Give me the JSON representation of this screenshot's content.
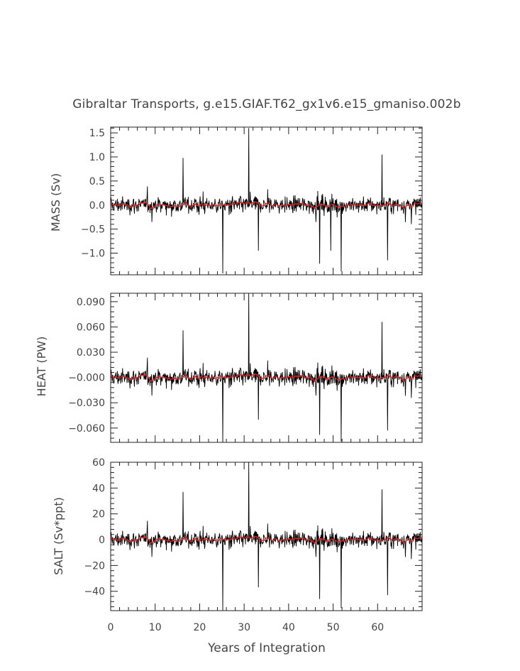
{
  "chart_data": {
    "type": "line",
    "title": "Gibraltar Transports, g.e15.GIAF.T62_gx1v6.e15_gmaniso.002b",
    "xlabel": "Years of Integration",
    "xlim": [
      0,
      70
    ],
    "x_ticks": [
      0,
      10,
      20,
      30,
      40,
      50,
      60
    ],
    "x_tick_labels": [
      "0",
      "10",
      "20",
      "30",
      "40",
      "50",
      "60"
    ],
    "colors": {
      "raw": "#000000",
      "smoothed": "#dd2222"
    },
    "panels": [
      {
        "id": "mass",
        "ylabel": "MASS (Sv)",
        "ylim": [
          -1.45,
          1.62
        ],
        "y_ticks": [
          1.5,
          1.0,
          0.5,
          0.0,
          -0.5,
          -1.0
        ],
        "y_tick_labels": [
          "1.5",
          "1.0",
          "0.5",
          "0.0",
          "−0.5",
          "−1.0"
        ],
        "scale": 0.095,
        "peaks": [
          {
            "x": 25.2,
            "y": -1.42
          },
          {
            "x": 31.0,
            "y": 1.6
          },
          {
            "x": 16.3,
            "y": 0.98
          },
          {
            "x": 61.0,
            "y": 1.05
          },
          {
            "x": 47.0,
            "y": -1.22
          },
          {
            "x": 51.8,
            "y": -1.38
          },
          {
            "x": 62.2,
            "y": -1.15
          },
          {
            "x": 33.2,
            "y": -0.95
          },
          {
            "x": 49.5,
            "y": -0.95
          }
        ]
      },
      {
        "id": "heat",
        "ylabel": "HEAT (PW)",
        "ylim": [
          -0.077,
          0.1
        ],
        "y_ticks": [
          0.09,
          0.06,
          0.03,
          0.0,
          -0.03,
          -0.06
        ],
        "y_tick_labels": [
          "0.090",
          "0.060",
          "0.030",
          "−0.000",
          "−0.030",
          "−0.060"
        ],
        "scale": 0.0058,
        "peaks": [
          {
            "x": 25.2,
            "y": -0.077
          },
          {
            "x": 31.0,
            "y": 0.1
          },
          {
            "x": 16.3,
            "y": 0.056
          },
          {
            "x": 61.0,
            "y": 0.066
          },
          {
            "x": 47.0,
            "y": -0.068
          },
          {
            "x": 51.8,
            "y": -0.076
          },
          {
            "x": 62.2,
            "y": -0.063
          },
          {
            "x": 33.2,
            "y": -0.05
          }
        ]
      },
      {
        "id": "salt",
        "ylabel": "SALT (Sv*ppt)",
        "ylim": [
          -55,
          60
        ],
        "y_ticks": [
          60,
          40,
          20,
          0,
          -20,
          -40
        ],
        "y_tick_labels": [
          "60",
          "40",
          "20",
          "0",
          "−20",
          "−40"
        ],
        "scale": 3.6,
        "peaks": [
          {
            "x": 25.2,
            "y": -55
          },
          {
            "x": 31.0,
            "y": 60
          },
          {
            "x": 16.3,
            "y": 37
          },
          {
            "x": 61.0,
            "y": 39
          },
          {
            "x": 47.0,
            "y": -46
          },
          {
            "x": 51.8,
            "y": -53
          },
          {
            "x": 62.2,
            "y": -43
          },
          {
            "x": 33.2,
            "y": -37
          }
        ]
      }
    ]
  }
}
